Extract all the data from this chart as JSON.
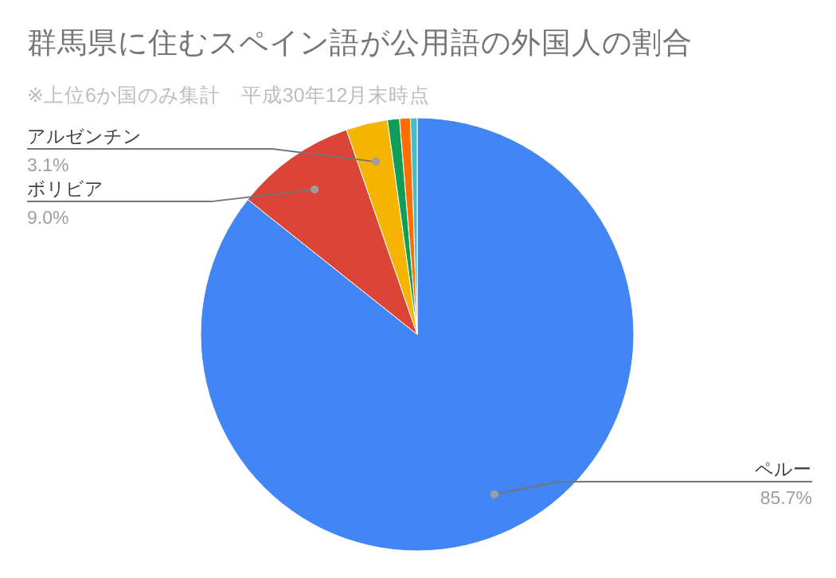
{
  "chart_data": {
    "type": "pie",
    "title": "群馬県に住むスペイン語が公用語の外国人の割合",
    "subtitle": "※上位6か国のみ集計　平成30年12月末時点",
    "categories": [
      "ペルー",
      "ボリビア",
      "アルゼンチン",
      null,
      null,
      null
    ],
    "values": [
      85.7,
      9.0,
      3.1,
      0.9,
      0.8,
      0.5
    ],
    "colors": [
      "#4285f4",
      "#db4437",
      "#f4b400",
      "#0f9d58",
      "#ff6d01",
      "#46bdc6"
    ],
    "value_labels": [
      "85.7%",
      "9.0%",
      "3.1%",
      null,
      null,
      null
    ]
  }
}
